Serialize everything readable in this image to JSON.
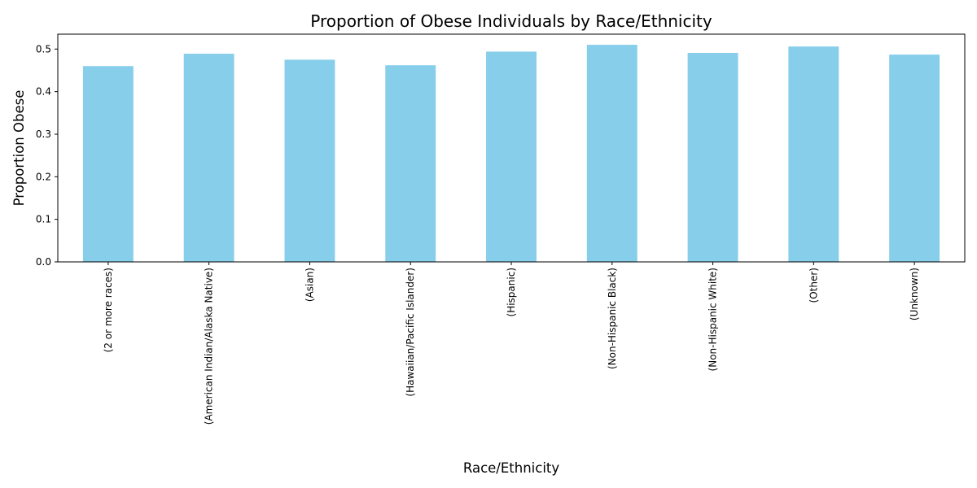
{
  "chart_data": {
    "type": "bar",
    "title": "Proportion of Obese Individuals by Race/Ethnicity",
    "xlabel": "Race/Ethnicity",
    "ylabel": "Proportion Obese",
    "categories": [
      "(2 or more races)",
      "(American Indian/Alaska Native)",
      "(Asian)",
      "(Hawaiian/Pacific Islander)",
      "(Hispanic)",
      "(Non-Hispanic Black)",
      "(Non-Hispanic White)",
      "(Other)",
      "(Unknown)"
    ],
    "values": [
      0.46,
      0.489,
      0.475,
      0.462,
      0.494,
      0.51,
      0.491,
      0.506,
      0.487
    ],
    "ylim": [
      0,
      0.535
    ],
    "yticks": [
      "0.0",
      "0.1",
      "0.2",
      "0.3",
      "0.4",
      "0.5"
    ],
    "grid": false,
    "colors": {
      "bar": "#87ceeb",
      "axis": "#000000"
    }
  }
}
